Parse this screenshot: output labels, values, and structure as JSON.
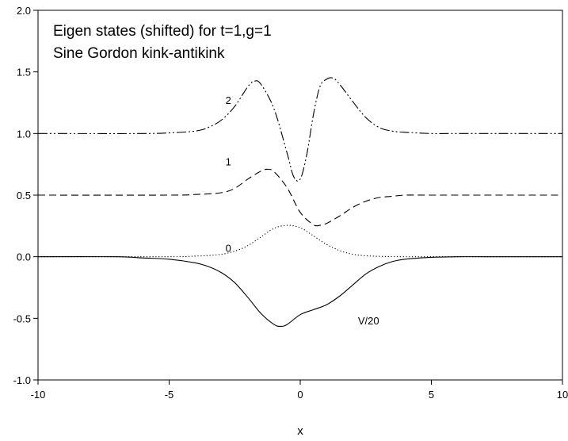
{
  "chart_data": {
    "type": "line",
    "title_lines": [
      "Eigen states (shifted) for t=1,g=1",
      "Sine Gordon kink-antikink"
    ],
    "xlabel": "x",
    "ylabel": "",
    "xlim": [
      -10,
      10
    ],
    "ylim": [
      -1.0,
      2.0
    ],
    "x_ticks": [
      -10,
      -5,
      0,
      5,
      10
    ],
    "x_tick_labels": [
      "-10",
      "-5",
      "0",
      "5",
      "10"
    ],
    "y_ticks": [
      -1.0,
      -0.5,
      0.0,
      0.5,
      1.0,
      1.5,
      2.0
    ],
    "y_tick_labels": [
      "-1.0",
      "-0.5",
      "0.0",
      "0.5",
      "1.0",
      "1.5",
      "2.0"
    ],
    "grid": false,
    "series": [
      {
        "name": "V/20",
        "line_style": "solid",
        "x": [
          -10,
          -7,
          -6,
          -5,
          -4,
          -3.5,
          -3,
          -2.5,
          -2,
          -1.5,
          -1,
          -0.75,
          -0.5,
          0,
          0.5,
          1,
          1.5,
          2,
          2.5,
          3,
          3.5,
          4,
          5,
          6,
          7,
          10
        ],
        "values": [
          0,
          0,
          -0.01,
          -0.02,
          -0.05,
          -0.08,
          -0.13,
          -0.21,
          -0.33,
          -0.46,
          -0.55,
          -0.565,
          -0.55,
          -0.47,
          -0.43,
          -0.39,
          -0.32,
          -0.23,
          -0.14,
          -0.08,
          -0.04,
          -0.02,
          -0.005,
          0,
          0,
          0
        ]
      },
      {
        "name": "0",
        "line_style": "dotted",
        "x": [
          -10,
          -5,
          -4,
          -3.5,
          -3,
          -2.5,
          -2,
          -1.5,
          -1,
          -0.5,
          0,
          0.5,
          1,
          1.5,
          2,
          2.5,
          3,
          3.5,
          4,
          5,
          10
        ],
        "values": [
          0,
          0,
          0.005,
          0.01,
          0.02,
          0.045,
          0.09,
          0.16,
          0.23,
          0.255,
          0.235,
          0.17,
          0.1,
          0.05,
          0.02,
          0.008,
          0.003,
          0.001,
          0,
          0,
          0
        ]
      },
      {
        "name": "1",
        "line_style": "dashed",
        "x": [
          -10,
          -5,
          -4,
          -3,
          -2.5,
          -2,
          -1.5,
          -1.25,
          -1,
          -0.5,
          0,
          0.5,
          0.75,
          1,
          1.5,
          2,
          2.5,
          3,
          3.5,
          4,
          5,
          10
        ],
        "values": [
          0.5,
          0.5,
          0.505,
          0.52,
          0.555,
          0.63,
          0.695,
          0.71,
          0.69,
          0.56,
          0.36,
          0.26,
          0.255,
          0.27,
          0.33,
          0.4,
          0.45,
          0.48,
          0.49,
          0.5,
          0.5,
          0.5
        ]
      },
      {
        "name": "2",
        "line_style": "dash-dot-dot",
        "x": [
          -10,
          -6,
          -5,
          -4,
          -3.5,
          -3,
          -2.5,
          -2,
          -1.75,
          -1.5,
          -1,
          -0.5,
          -0.25,
          0,
          0.25,
          0.5,
          0.75,
          1,
          1.25,
          1.5,
          2,
          2.5,
          3,
          3.5,
          4,
          5,
          6,
          10
        ],
        "values": [
          1,
          1,
          1.005,
          1.02,
          1.05,
          1.11,
          1.22,
          1.38,
          1.425,
          1.4,
          1.2,
          0.84,
          0.65,
          0.63,
          0.83,
          1.15,
          1.38,
          1.44,
          1.45,
          1.4,
          1.26,
          1.13,
          1.05,
          1.02,
          1.01,
          1,
          1,
          1
        ]
      }
    ],
    "annotations": [
      {
        "text": "2",
        "x": -2.85,
        "y": 1.24
      },
      {
        "text": "1",
        "x": -2.85,
        "y": 0.74
      },
      {
        "text": "0",
        "x": -2.85,
        "y": 0.04
      },
      {
        "text": "V/20",
        "x": 2.2,
        "y": -0.55
      }
    ]
  }
}
